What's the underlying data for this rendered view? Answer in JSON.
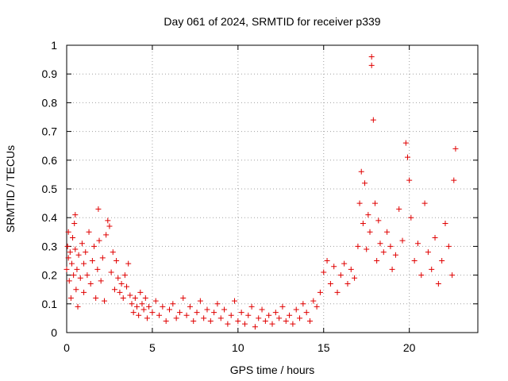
{
  "chart_data": {
    "type": "scatter",
    "title": "Day 061 of 2024, SRMTID for receiver p339",
    "xlabel": "GPS time / hours",
    "ylabel": "SRMTID / TECUs",
    "xlim": [
      0,
      24
    ],
    "ylim": [
      0,
      1
    ],
    "xticks": [
      0,
      5,
      10,
      15,
      20
    ],
    "yticks": [
      0,
      0.1,
      0.2,
      0.3,
      0.4,
      0.5,
      0.6,
      0.7,
      0.8,
      0.9,
      1
    ],
    "ytick_labels": [
      "0",
      "0.1",
      "0.2",
      "0.3",
      "0.4",
      "0.5",
      "0.6",
      "0.7",
      "0.8",
      "0.9",
      "1"
    ],
    "grid": true,
    "marker": "+",
    "color": "#e00000",
    "series": [
      {
        "name": "SRMTID",
        "points": [
          [
            0.0,
            0.22
          ],
          [
            0.05,
            0.3
          ],
          [
            0.1,
            0.35
          ],
          [
            0.1,
            0.26
          ],
          [
            0.15,
            0.18
          ],
          [
            0.2,
            0.28
          ],
          [
            0.25,
            0.12
          ],
          [
            0.3,
            0.24
          ],
          [
            0.35,
            0.33
          ],
          [
            0.4,
            0.2
          ],
          [
            0.45,
            0.38
          ],
          [
            0.5,
            0.41
          ],
          [
            0.5,
            0.29
          ],
          [
            0.55,
            0.15
          ],
          [
            0.6,
            0.22
          ],
          [
            0.65,
            0.09
          ],
          [
            0.7,
            0.27
          ],
          [
            0.8,
            0.19
          ],
          [
            0.9,
            0.31
          ],
          [
            1.0,
            0.24
          ],
          [
            1.0,
            0.14
          ],
          [
            1.1,
            0.28
          ],
          [
            1.2,
            0.2
          ],
          [
            1.3,
            0.35
          ],
          [
            1.4,
            0.17
          ],
          [
            1.5,
            0.25
          ],
          [
            1.6,
            0.3
          ],
          [
            1.7,
            0.12
          ],
          [
            1.8,
            0.22
          ],
          [
            1.85,
            0.43
          ],
          [
            1.9,
            0.32
          ],
          [
            2.0,
            0.18
          ],
          [
            2.1,
            0.26
          ],
          [
            2.2,
            0.11
          ],
          [
            2.3,
            0.34
          ],
          [
            2.4,
            0.39
          ],
          [
            2.5,
            0.37
          ],
          [
            2.6,
            0.21
          ],
          [
            2.7,
            0.28
          ],
          [
            2.8,
            0.15
          ],
          [
            2.9,
            0.25
          ],
          [
            3.0,
            0.19
          ],
          [
            3.1,
            0.14
          ],
          [
            3.2,
            0.17
          ],
          [
            3.3,
            0.12
          ],
          [
            3.4,
            0.2
          ],
          [
            3.5,
            0.16
          ],
          [
            3.6,
            0.24
          ],
          [
            3.7,
            0.13
          ],
          [
            3.8,
            0.1
          ],
          [
            3.9,
            0.07
          ],
          [
            4.0,
            0.12
          ],
          [
            4.1,
            0.09
          ],
          [
            4.2,
            0.06
          ],
          [
            4.3,
            0.14
          ],
          [
            4.4,
            0.1
          ],
          [
            4.5,
            0.08
          ],
          [
            4.6,
            0.12
          ],
          [
            4.7,
            0.05
          ],
          [
            4.8,
            0.09
          ],
          [
            5.0,
            0.07
          ],
          [
            5.2,
            0.11
          ],
          [
            5.4,
            0.06
          ],
          [
            5.6,
            0.09
          ],
          [
            5.8,
            0.04
          ],
          [
            6.0,
            0.08
          ],
          [
            6.2,
            0.1
          ],
          [
            6.4,
            0.05
          ],
          [
            6.6,
            0.07
          ],
          [
            6.8,
            0.12
          ],
          [
            7.0,
            0.06
          ],
          [
            7.2,
            0.09
          ],
          [
            7.4,
            0.04
          ],
          [
            7.6,
            0.07
          ],
          [
            7.8,
            0.11
          ],
          [
            8.0,
            0.05
          ],
          [
            8.2,
            0.08
          ],
          [
            8.4,
            0.04
          ],
          [
            8.6,
            0.07
          ],
          [
            8.8,
            0.1
          ],
          [
            9.0,
            0.05
          ],
          [
            9.2,
            0.08
          ],
          [
            9.4,
            0.03
          ],
          [
            9.6,
            0.06
          ],
          [
            9.8,
            0.11
          ],
          [
            10.0,
            0.04
          ],
          [
            10.2,
            0.07
          ],
          [
            10.4,
            0.03
          ],
          [
            10.6,
            0.06
          ],
          [
            10.8,
            0.09
          ],
          [
            11.0,
            0.02
          ],
          [
            11.2,
            0.05
          ],
          [
            11.4,
            0.08
          ],
          [
            11.6,
            0.04
          ],
          [
            11.8,
            0.06
          ],
          [
            12.0,
            0.03
          ],
          [
            12.2,
            0.07
          ],
          [
            12.4,
            0.05
          ],
          [
            12.6,
            0.09
          ],
          [
            12.8,
            0.04
          ],
          [
            13.0,
            0.06
          ],
          [
            13.2,
            0.03
          ],
          [
            13.4,
            0.08
          ],
          [
            13.6,
            0.05
          ],
          [
            13.8,
            0.1
          ],
          [
            14.0,
            0.07
          ],
          [
            14.2,
            0.04
          ],
          [
            14.4,
            0.11
          ],
          [
            14.6,
            0.09
          ],
          [
            14.8,
            0.14
          ],
          [
            15.0,
            0.21
          ],
          [
            15.2,
            0.25
          ],
          [
            15.4,
            0.17
          ],
          [
            15.6,
            0.23
          ],
          [
            15.8,
            0.14
          ],
          [
            16.0,
            0.2
          ],
          [
            16.2,
            0.24
          ],
          [
            16.4,
            0.17
          ],
          [
            16.6,
            0.22
          ],
          [
            16.8,
            0.19
          ],
          [
            17.0,
            0.3
          ],
          [
            17.1,
            0.45
          ],
          [
            17.2,
            0.56
          ],
          [
            17.3,
            0.38
          ],
          [
            17.4,
            0.52
          ],
          [
            17.5,
            0.29
          ],
          [
            17.6,
            0.41
          ],
          [
            17.7,
            0.35
          ],
          [
            17.8,
            0.96
          ],
          [
            17.8,
            0.93
          ],
          [
            17.9,
            0.74
          ],
          [
            18.0,
            0.45
          ],
          [
            18.1,
            0.25
          ],
          [
            18.2,
            0.39
          ],
          [
            18.3,
            0.31
          ],
          [
            18.5,
            0.28
          ],
          [
            18.7,
            0.35
          ],
          [
            18.9,
            0.3
          ],
          [
            19.0,
            0.22
          ],
          [
            19.2,
            0.27
          ],
          [
            19.4,
            0.43
          ],
          [
            19.6,
            0.32
          ],
          [
            19.8,
            0.66
          ],
          [
            19.9,
            0.61
          ],
          [
            20.0,
            0.53
          ],
          [
            20.1,
            0.4
          ],
          [
            20.3,
            0.25
          ],
          [
            20.5,
            0.31
          ],
          [
            20.7,
            0.2
          ],
          [
            20.9,
            0.45
          ],
          [
            21.1,
            0.28
          ],
          [
            21.3,
            0.22
          ],
          [
            21.5,
            0.33
          ],
          [
            21.7,
            0.17
          ],
          [
            21.9,
            0.25
          ],
          [
            22.1,
            0.38
          ],
          [
            22.3,
            0.3
          ],
          [
            22.5,
            0.2
          ],
          [
            22.6,
            0.53
          ],
          [
            22.7,
            0.64
          ]
        ]
      }
    ]
  }
}
